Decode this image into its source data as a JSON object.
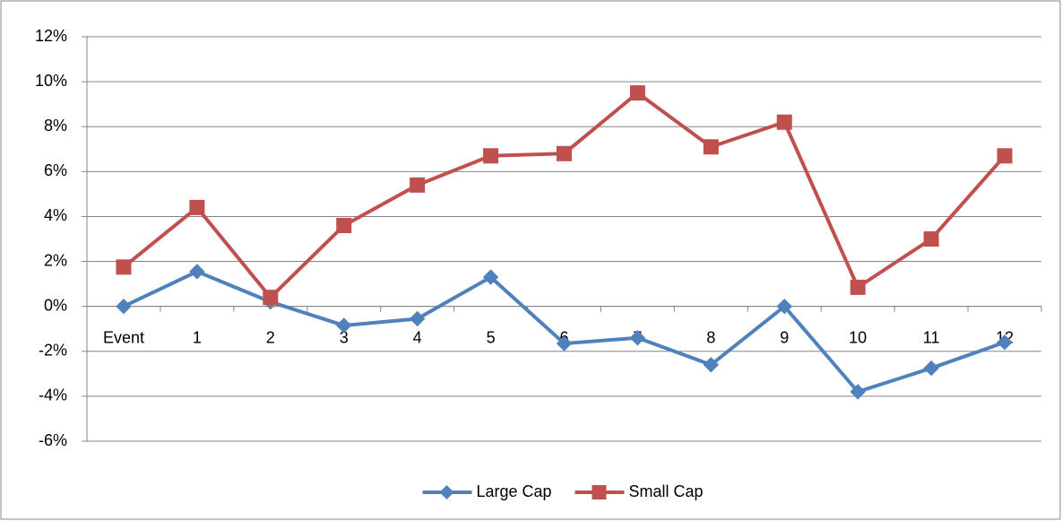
{
  "chart_data": {
    "type": "line",
    "categories": [
      "Event",
      "1",
      "2",
      "3",
      "4",
      "5",
      "6",
      "7",
      "8",
      "9",
      "10",
      "11",
      "12"
    ],
    "series": [
      {
        "name": "Large Cap",
        "color": "#4f81bd",
        "marker": "diamond",
        "values": [
          0,
          1.55,
          0.2,
          -0.85,
          -0.55,
          1.3,
          -1.65,
          -1.4,
          -2.6,
          0,
          -3.8,
          -2.75,
          -1.6
        ]
      },
      {
        "name": "Small Cap",
        "color": "#c0504d",
        "marker": "square",
        "values": [
          1.75,
          4.4,
          0.4,
          3.6,
          5.4,
          6.7,
          6.8,
          9.5,
          7.1,
          8.2,
          0.85,
          3.0,
          6.7
        ]
      }
    ],
    "ylim": [
      -6,
      12
    ],
    "yticks": [
      {
        "value": -6,
        "label": "-6%"
      },
      {
        "value": -4,
        "label": "-4%"
      },
      {
        "value": -2,
        "label": "-2%"
      },
      {
        "value": 0,
        "label": "0%"
      },
      {
        "value": 2,
        "label": "2%"
      },
      {
        "value": 4,
        "label": "4%"
      },
      {
        "value": 6,
        "label": "6%"
      },
      {
        "value": 8,
        "label": "8%"
      },
      {
        "value": 10,
        "label": "10%"
      },
      {
        "value": 12,
        "label": "12%"
      }
    ],
    "grid": true,
    "legend": "bottom"
  }
}
